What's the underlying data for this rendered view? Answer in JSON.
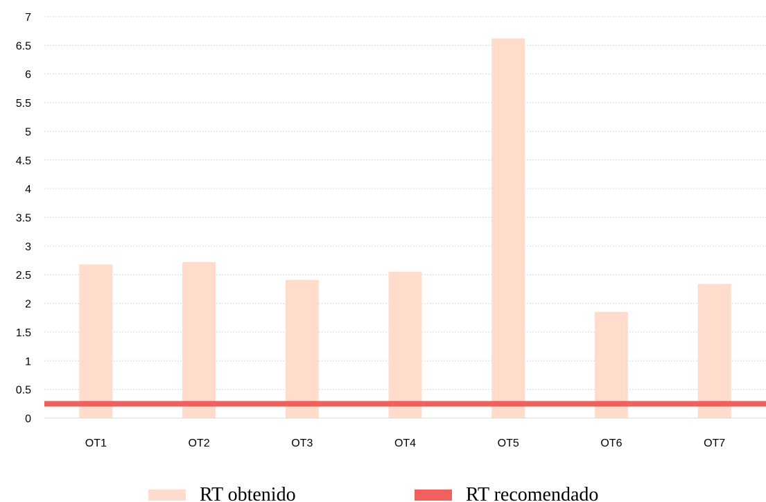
{
  "chart_data": {
    "type": "bar",
    "categories": [
      "OT1",
      "OT2",
      "OT3",
      "OT4",
      "OT5",
      "OT6",
      "OT7"
    ],
    "series": [
      {
        "name": "RT obtenido",
        "kind": "bar",
        "color": "#ffdccb",
        "values": [
          2.68,
          2.72,
          2.41,
          2.55,
          6.62,
          1.85,
          2.34
        ]
      },
      {
        "name": "RT recomendado",
        "kind": "line",
        "color": "#f0605c",
        "value": 0.25
      }
    ],
    "y_ticks": [
      "0",
      "0.5",
      "1",
      "1.5",
      "2",
      "2.5",
      "3",
      "3.5",
      "4",
      "4.5",
      "5",
      "5.5",
      "6",
      "6.5",
      "7"
    ],
    "ylim": [
      0,
      7
    ],
    "grid": true,
    "legend_position": "bottom"
  }
}
